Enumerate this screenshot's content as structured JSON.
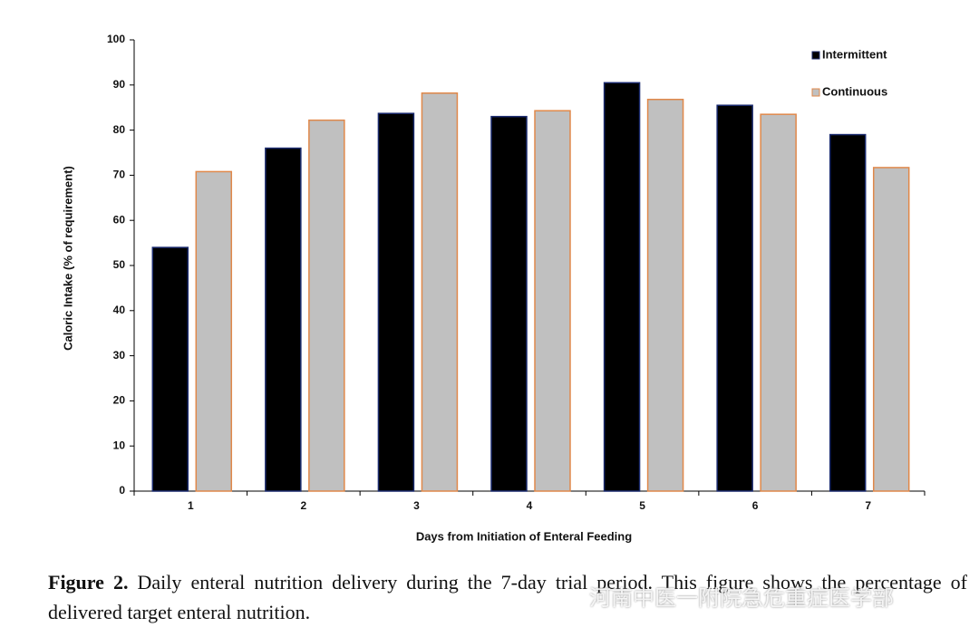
{
  "chart_data": {
    "type": "bar",
    "x_label": "Days from Initiation of Enteral Feeding",
    "y_label": "Caloric Intake (% of requirement)",
    "categories": [
      "1",
      "2",
      "3",
      "4",
      "5",
      "6",
      "7"
    ],
    "series": [
      {
        "name": "Intermittent",
        "color": "#000000",
        "edge": "#1a2a6e",
        "values": [
          54,
          76,
          83.7,
          83,
          90.5,
          85.5,
          79
        ]
      },
      {
        "name": "Continuous",
        "color": "#c0c0c0",
        "edge": "#e0884a",
        "values": [
          70.8,
          82.2,
          88.2,
          84.3,
          86.8,
          83.5,
          71.7
        ]
      }
    ],
    "ylim": [
      0,
      100
    ],
    "yticks": [
      0,
      10,
      20,
      30,
      40,
      50,
      60,
      70,
      80,
      90,
      100
    ],
    "grid": false,
    "legend": "upper right"
  },
  "figure": {
    "label": "Figure 2.",
    "text": "Daily enteral nutrition delivery during the 7-day trial period. This figure shows the percentage of delivered target enteral nutrition."
  },
  "watermark": "河南中医一附院急危重症医学部"
}
